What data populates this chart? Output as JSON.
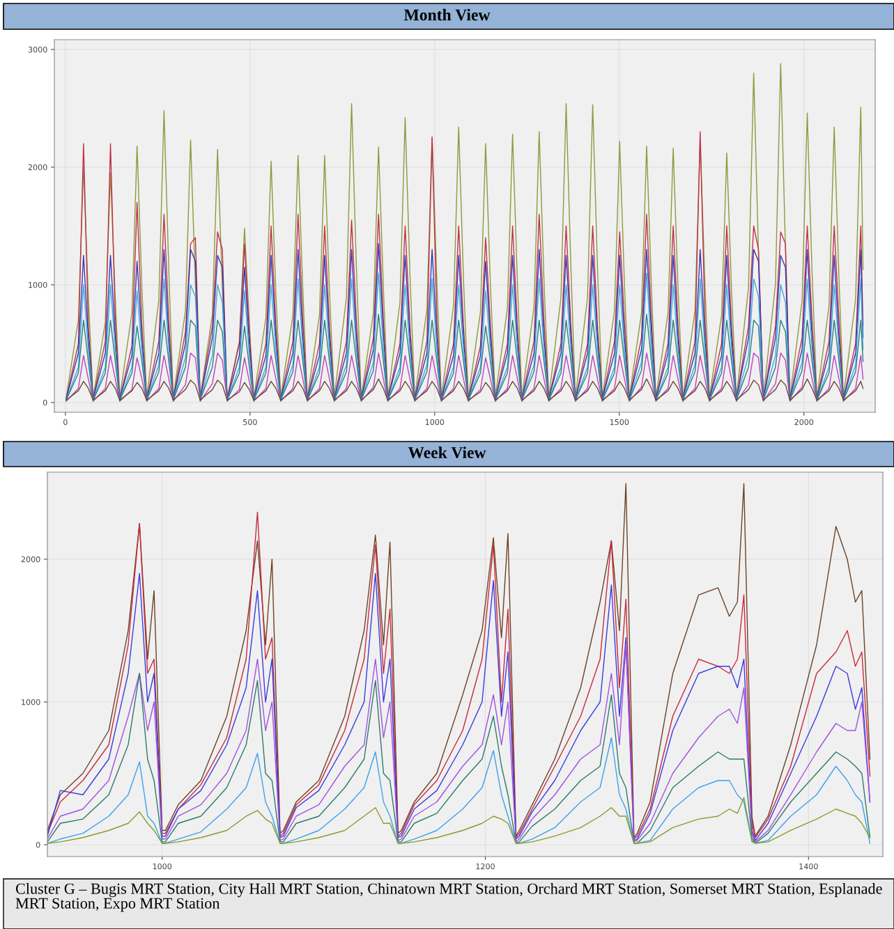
{
  "chart_data": [
    {
      "type": "line",
      "title": "Month View",
      "xlim": [
        -30,
        2193
      ],
      "ylim": [
        -83,
        3083
      ],
      "xticks": [
        0,
        500,
        1000,
        1500,
        2000
      ],
      "yticks": [
        0,
        1000,
        2000,
        3000
      ],
      "grid": true,
      "marker": "none",
      "line_style": "solid",
      "x": [
        2,
        35,
        49,
        62,
        75,
        108,
        122,
        135,
        147,
        180,
        194,
        207,
        220,
        253,
        267,
        280,
        292,
        325,
        339,
        352,
        365,
        398,
        412,
        425,
        438,
        471,
        485,
        498,
        510,
        543,
        557,
        570,
        583,
        616,
        630,
        643,
        655,
        688,
        702,
        715,
        728,
        761,
        775,
        788,
        801,
        834,
        848,
        861,
        873,
        906,
        920,
        933,
        946,
        979,
        993,
        1006,
        1018,
        1051,
        1065,
        1078,
        1091,
        1124,
        1138,
        1151,
        1164,
        1197,
        1211,
        1224,
        1236,
        1269,
        1283,
        1296,
        1309,
        1342,
        1356,
        1369,
        1381,
        1414,
        1428,
        1441,
        1454,
        1487,
        1501,
        1514,
        1527,
        1560,
        1574,
        1587,
        1599,
        1632,
        1646,
        1659,
        1672,
        1705,
        1719,
        1732,
        1744,
        1777,
        1791,
        1804,
        1817,
        1850,
        1864,
        1877,
        1890,
        1923,
        1937,
        1950,
        1962,
        1995,
        2009,
        2022,
        2035,
        2068,
        2082,
        2095,
        2107,
        2140,
        2154,
        2160
      ],
      "series": [
        {
          "color": "#8c9a3c",
          "values": [
            40,
            700,
            2000,
            900,
            40,
            680,
            1950,
            880,
            40,
            760,
            2180,
            980,
            40,
            870,
            2480,
            1120,
            40,
            780,
            2230,
            1000,
            40,
            750,
            2150,
            970,
            40,
            520,
            1480,
            670,
            40,
            720,
            2050,
            920,
            40,
            740,
            2100,
            950,
            40,
            740,
            2100,
            950,
            40,
            890,
            2540,
            1140,
            40,
            760,
            2170,
            980,
            40,
            850,
            2420,
            1090,
            40,
            790,
            2260,
            1020,
            40,
            820,
            2340,
            1050,
            40,
            770,
            2200,
            990,
            40,
            800,
            2280,
            1030,
            40,
            810,
            2300,
            1040,
            40,
            890,
            2540,
            1140,
            40,
            890,
            2530,
            1140,
            40,
            780,
            2220,
            1000,
            40,
            760,
            2180,
            980,
            40,
            760,
            2160,
            970,
            40,
            780,
            2230,
            1000,
            40,
            740,
            2120,
            950,
            40,
            980,
            2800,
            1260,
            40,
            1010,
            2880,
            1300,
            40,
            860,
            2460,
            1110,
            40,
            820,
            2340,
            1050,
            40,
            880,
            2510,
            1130
          ]
        },
        {
          "color": "#c0304a",
          "values": [
            30,
            500,
            2200,
            650,
            30,
            520,
            2200,
            700,
            30,
            480,
            1700,
            650,
            30,
            520,
            1600,
            700,
            30,
            600,
            1350,
            1400,
            30,
            650,
            1450,
            1300,
            30,
            500,
            1350,
            600,
            30,
            500,
            1500,
            650,
            30,
            520,
            1600,
            700,
            30,
            500,
            1500,
            650,
            30,
            520,
            1550,
            700,
            30,
            550,
            1600,
            700,
            30,
            500,
            1500,
            650,
            30,
            520,
            2250,
            700,
            30,
            500,
            1500,
            650,
            30,
            480,
            1400,
            650,
            30,
            500,
            1500,
            650,
            30,
            520,
            1600,
            700,
            30,
            500,
            1500,
            650,
            30,
            500,
            1500,
            650,
            30,
            520,
            1450,
            700,
            30,
            550,
            1600,
            700,
            30,
            500,
            1500,
            650,
            30,
            520,
            2300,
            700,
            30,
            500,
            1500,
            650,
            30,
            650,
            1500,
            1300,
            30,
            650,
            1450,
            1350,
            30,
            550,
            1500,
            700,
            30,
            520,
            1500,
            700,
            30,
            500,
            1500,
            650
          ]
        },
        {
          "color": "#3636b8",
          "values": [
            30,
            420,
            1250,
            550,
            30,
            420,
            1250,
            550,
            30,
            400,
            1200,
            550,
            30,
            420,
            1300,
            550,
            30,
            500,
            1300,
            1200,
            30,
            550,
            1250,
            1150,
            30,
            400,
            1150,
            500,
            30,
            400,
            1250,
            550,
            30,
            420,
            1300,
            550,
            30,
            400,
            1250,
            550,
            30,
            420,
            1300,
            550,
            30,
            450,
            1350,
            600,
            30,
            420,
            1250,
            550,
            30,
            420,
            1300,
            550,
            30,
            400,
            1250,
            550,
            30,
            400,
            1200,
            550,
            30,
            420,
            1250,
            550,
            30,
            420,
            1300,
            550,
            30,
            420,
            1250,
            550,
            30,
            420,
            1250,
            550,
            30,
            420,
            1250,
            550,
            30,
            450,
            1300,
            600,
            30,
            420,
            1250,
            550,
            30,
            420,
            1300,
            550,
            30,
            400,
            1250,
            550,
            30,
            550,
            1300,
            1200,
            30,
            550,
            1250,
            1150,
            30,
            450,
            1300,
            550,
            30,
            420,
            1250,
            550,
            30,
            420,
            1300,
            550
          ]
        },
        {
          "color": "#40a8d8",
          "values": [
            20,
            300,
            1000,
            450,
            20,
            300,
            1000,
            450,
            20,
            300,
            950,
            450,
            20,
            320,
            1050,
            450,
            20,
            380,
            1000,
            900,
            20,
            400,
            1000,
            850,
            20,
            300,
            950,
            400,
            20,
            300,
            1000,
            450,
            20,
            320,
            1050,
            450,
            20,
            300,
            1000,
            450,
            20,
            320,
            1050,
            450,
            20,
            340,
            1100,
            450,
            20,
            300,
            1000,
            450,
            20,
            320,
            1050,
            450,
            20,
            300,
            1000,
            450,
            20,
            300,
            950,
            450,
            20,
            300,
            1000,
            450,
            20,
            320,
            1050,
            450,
            20,
            300,
            1000,
            450,
            20,
            300,
            1000,
            450,
            20,
            300,
            1000,
            450,
            20,
            340,
            1100,
            450,
            20,
            300,
            1000,
            450,
            20,
            320,
            1050,
            450,
            20,
            300,
            1000,
            450,
            20,
            400,
            1050,
            900,
            20,
            400,
            1000,
            850,
            20,
            340,
            1050,
            450,
            20,
            300,
            1000,
            450,
            20,
            320,
            1050,
            450
          ]
        },
        {
          "color": "#2a8080",
          "values": [
            20,
            250,
            700,
            350,
            20,
            250,
            700,
            350,
            20,
            250,
            650,
            350,
            20,
            260,
            700,
            350,
            20,
            300,
            700,
            650,
            20,
            300,
            700,
            600,
            20,
            250,
            650,
            300,
            20,
            250,
            700,
            350,
            20,
            260,
            700,
            350,
            20,
            250,
            700,
            350,
            20,
            260,
            700,
            350,
            20,
            270,
            750,
            350,
            20,
            250,
            700,
            350,
            20,
            260,
            700,
            350,
            20,
            250,
            700,
            350,
            20,
            250,
            650,
            350,
            20,
            250,
            700,
            350,
            20,
            260,
            700,
            350,
            20,
            250,
            700,
            350,
            20,
            250,
            700,
            350,
            20,
            250,
            700,
            350,
            20,
            270,
            750,
            350,
            20,
            250,
            700,
            350,
            20,
            260,
            700,
            350,
            20,
            250,
            700,
            350,
            20,
            300,
            700,
            650,
            20,
            300,
            700,
            600,
            20,
            270,
            700,
            350,
            20,
            250,
            700,
            350,
            20,
            260,
            700,
            350
          ]
        },
        {
          "color": "#c040c0",
          "values": [
            10,
            120,
            400,
            200,
            10,
            120,
            400,
            200,
            10,
            110,
            380,
            200,
            10,
            120,
            400,
            200,
            10,
            150,
            420,
            380,
            10,
            160,
            420,
            360,
            10,
            110,
            380,
            180,
            10,
            120,
            400,
            200,
            10,
            120,
            400,
            200,
            10,
            120,
            400,
            200,
            10,
            120,
            400,
            200,
            10,
            130,
            420,
            200,
            10,
            120,
            400,
            200,
            10,
            120,
            400,
            200,
            10,
            120,
            400,
            200,
            10,
            110,
            380,
            200,
            10,
            120,
            400,
            200,
            10,
            120,
            400,
            200,
            10,
            120,
            400,
            200,
            10,
            120,
            400,
            200,
            10,
            120,
            400,
            200,
            10,
            130,
            420,
            200,
            10,
            120,
            400,
            200,
            10,
            120,
            400,
            200,
            10,
            120,
            400,
            200,
            10,
            150,
            420,
            380,
            10,
            160,
            420,
            360,
            10,
            130,
            420,
            200,
            10,
            120,
            400,
            200,
            10,
            120,
            400,
            200
          ]
        },
        {
          "color": "#6a4a30",
          "values": [
            20,
            100,
            180,
            120,
            20,
            100,
            180,
            120,
            20,
            100,
            170,
            120,
            20,
            100,
            180,
            120,
            20,
            110,
            190,
            150,
            20,
            110,
            190,
            150,
            20,
            90,
            170,
            110,
            20,
            100,
            180,
            120,
            20,
            100,
            180,
            120,
            20,
            100,
            180,
            120,
            20,
            100,
            180,
            120,
            20,
            110,
            200,
            120,
            20,
            100,
            180,
            120,
            20,
            100,
            180,
            120,
            20,
            100,
            180,
            120,
            20,
            90,
            170,
            120,
            20,
            100,
            180,
            120,
            20,
            100,
            180,
            120,
            20,
            100,
            180,
            120,
            20,
            100,
            180,
            120,
            20,
            100,
            180,
            120,
            20,
            110,
            200,
            120,
            20,
            100,
            180,
            120,
            20,
            100,
            180,
            120,
            20,
            100,
            180,
            120,
            20,
            110,
            190,
            150,
            20,
            110,
            190,
            150,
            20,
            110,
            200,
            120,
            20,
            100,
            180,
            120,
            20,
            100,
            180,
            120
          ]
        }
      ]
    },
    {
      "type": "line",
      "title": "Week View",
      "xlim": [
        929,
        1446
      ],
      "ylim": [
        -83,
        2610
      ],
      "xticks": [
        1000,
        1200,
        1400
      ],
      "yticks": [
        0,
        1000,
        2000
      ],
      "grid": true,
      "marker": "none",
      "line_style": "solid",
      "annotations": [
        "Cluster G – Bugis MRT Station, City Hall MRT Station, Chinatown MRT Station, Orchard MRT Station, Somerset MRT Station, Esplanade MRT Station, Expo MRT Station"
      ],
      "x": [
        929,
        937,
        951,
        967,
        979,
        986,
        991,
        995,
        1000,
        1002,
        1010,
        1024,
        1040,
        1052,
        1059,
        1064,
        1068,
        1073,
        1075,
        1083,
        1097,
        1113,
        1125,
        1132,
        1137,
        1141,
        1146,
        1148,
        1156,
        1170,
        1186,
        1198,
        1205,
        1210,
        1214,
        1219,
        1221,
        1229,
        1243,
        1259,
        1271,
        1278,
        1283,
        1287,
        1292,
        1294,
        1302,
        1316,
        1332,
        1344,
        1351,
        1356,
        1360,
        1365,
        1367,
        1375,
        1389,
        1405,
        1417,
        1424,
        1429,
        1433,
        1438
      ],
      "series": [
        {
          "color": "#6b4226",
          "values": [
            100,
            350,
            500,
            800,
            1500,
            2250,
            1300,
            1780,
            100,
            100,
            280,
            450,
            900,
            1500,
            2130,
            1400,
            2000,
            80,
            100,
            300,
            450,
            900,
            1500,
            2170,
            1400,
            2120,
            80,
            100,
            300,
            500,
            1050,
            1500,
            2150,
            1450,
            2180,
            60,
            100,
            280,
            600,
            1100,
            1700,
            2130,
            1500,
            2530,
            50,
            80,
            300,
            1200,
            1750,
            1800,
            1600,
            1700,
            2530,
            200,
            60,
            200,
            700,
            1400,
            2230,
            2000,
            1700,
            1780,
            600
          ]
        },
        {
          "color": "#c8283c",
          "values": [
            80,
            300,
            450,
            700,
            1400,
            2250,
            1200,
            1300,
            80,
            80,
            250,
            420,
            750,
            1300,
            2330,
            1300,
            1450,
            60,
            80,
            280,
            420,
            800,
            1300,
            2100,
            1200,
            1650,
            60,
            80,
            280,
            450,
            800,
            1300,
            2100,
            1000,
            1650,
            50,
            80,
            250,
            550,
            900,
            1300,
            2130,
            1100,
            1720,
            40,
            60,
            250,
            900,
            1300,
            1250,
            1200,
            1300,
            1750,
            150,
            50,
            180,
            550,
            1200,
            1350,
            1500,
            1250,
            1350,
            480
          ]
        },
        {
          "color": "#3a3ae0",
          "values": [
            60,
            380,
            350,
            600,
            1200,
            1900,
            1000,
            1200,
            60,
            60,
            250,
            380,
            700,
            1100,
            1780,
            1000,
            1300,
            50,
            60,
            260,
            380,
            700,
            1000,
            1900,
            1000,
            1300,
            50,
            60,
            250,
            380,
            700,
            1000,
            1850,
            900,
            1350,
            40,
            60,
            230,
            450,
            800,
            1000,
            1820,
            900,
            1450,
            30,
            40,
            220,
            800,
            1200,
            1250,
            1250,
            1100,
            1300,
            100,
            30,
            150,
            500,
            900,
            1250,
            1200,
            950,
            1100,
            300
          ]
        },
        {
          "color": "#a050e0",
          "values": [
            40,
            200,
            250,
            450,
            900,
            1200,
            800,
            1000,
            40,
            40,
            200,
            280,
            500,
            800,
            1300,
            800,
            1000,
            30,
            40,
            200,
            280,
            550,
            700,
            1300,
            750,
            1000,
            30,
            40,
            200,
            300,
            550,
            700,
            1050,
            700,
            1000,
            20,
            40,
            180,
            350,
            600,
            700,
            1200,
            700,
            1400,
            20,
            30,
            150,
            500,
            750,
            900,
            950,
            850,
            1100,
            80,
            20,
            100,
            350,
            650,
            850,
            800,
            800,
            1000,
            300
          ]
        },
        {
          "color": "#2a7a6a",
          "values": [
            20,
            150,
            180,
            350,
            700,
            1200,
            600,
            450,
            20,
            20,
            150,
            200,
            400,
            700,
            1150,
            500,
            450,
            20,
            20,
            150,
            200,
            400,
            600,
            1150,
            500,
            450,
            20,
            20,
            150,
            220,
            450,
            600,
            900,
            550,
            350,
            10,
            20,
            130,
            250,
            450,
            550,
            1050,
            500,
            400,
            10,
            10,
            100,
            400,
            550,
            650,
            600,
            600,
            600,
            50,
            10,
            80,
            300,
            500,
            650,
            600,
            550,
            500,
            50
          ]
        },
        {
          "color": "#3aa0f0",
          "values": [
            10,
            40,
            80,
            200,
            350,
            580,
            200,
            150,
            10,
            10,
            40,
            90,
            250,
            400,
            640,
            300,
            200,
            10,
            10,
            40,
            100,
            250,
            400,
            650,
            300,
            200,
            10,
            10,
            40,
            100,
            250,
            400,
            660,
            350,
            200,
            10,
            10,
            40,
            120,
            300,
            400,
            750,
            350,
            250,
            10,
            10,
            30,
            250,
            400,
            450,
            450,
            350,
            300,
            20,
            10,
            30,
            200,
            350,
            550,
            450,
            350,
            300,
            10
          ]
        },
        {
          "color": "#8a9a2a",
          "values": [
            10,
            20,
            50,
            100,
            150,
            230,
            150,
            100,
            10,
            10,
            20,
            50,
            100,
            200,
            240,
            180,
            150,
            10,
            10,
            20,
            50,
            100,
            200,
            260,
            150,
            150,
            10,
            10,
            20,
            50,
            100,
            150,
            200,
            180,
            150,
            10,
            10,
            20,
            60,
            120,
            200,
            260,
            200,
            200,
            10,
            10,
            20,
            120,
            180,
            200,
            250,
            220,
            330,
            30,
            10,
            20,
            100,
            180,
            250,
            220,
            200,
            150,
            50
          ]
        }
      ]
    }
  ]
}
